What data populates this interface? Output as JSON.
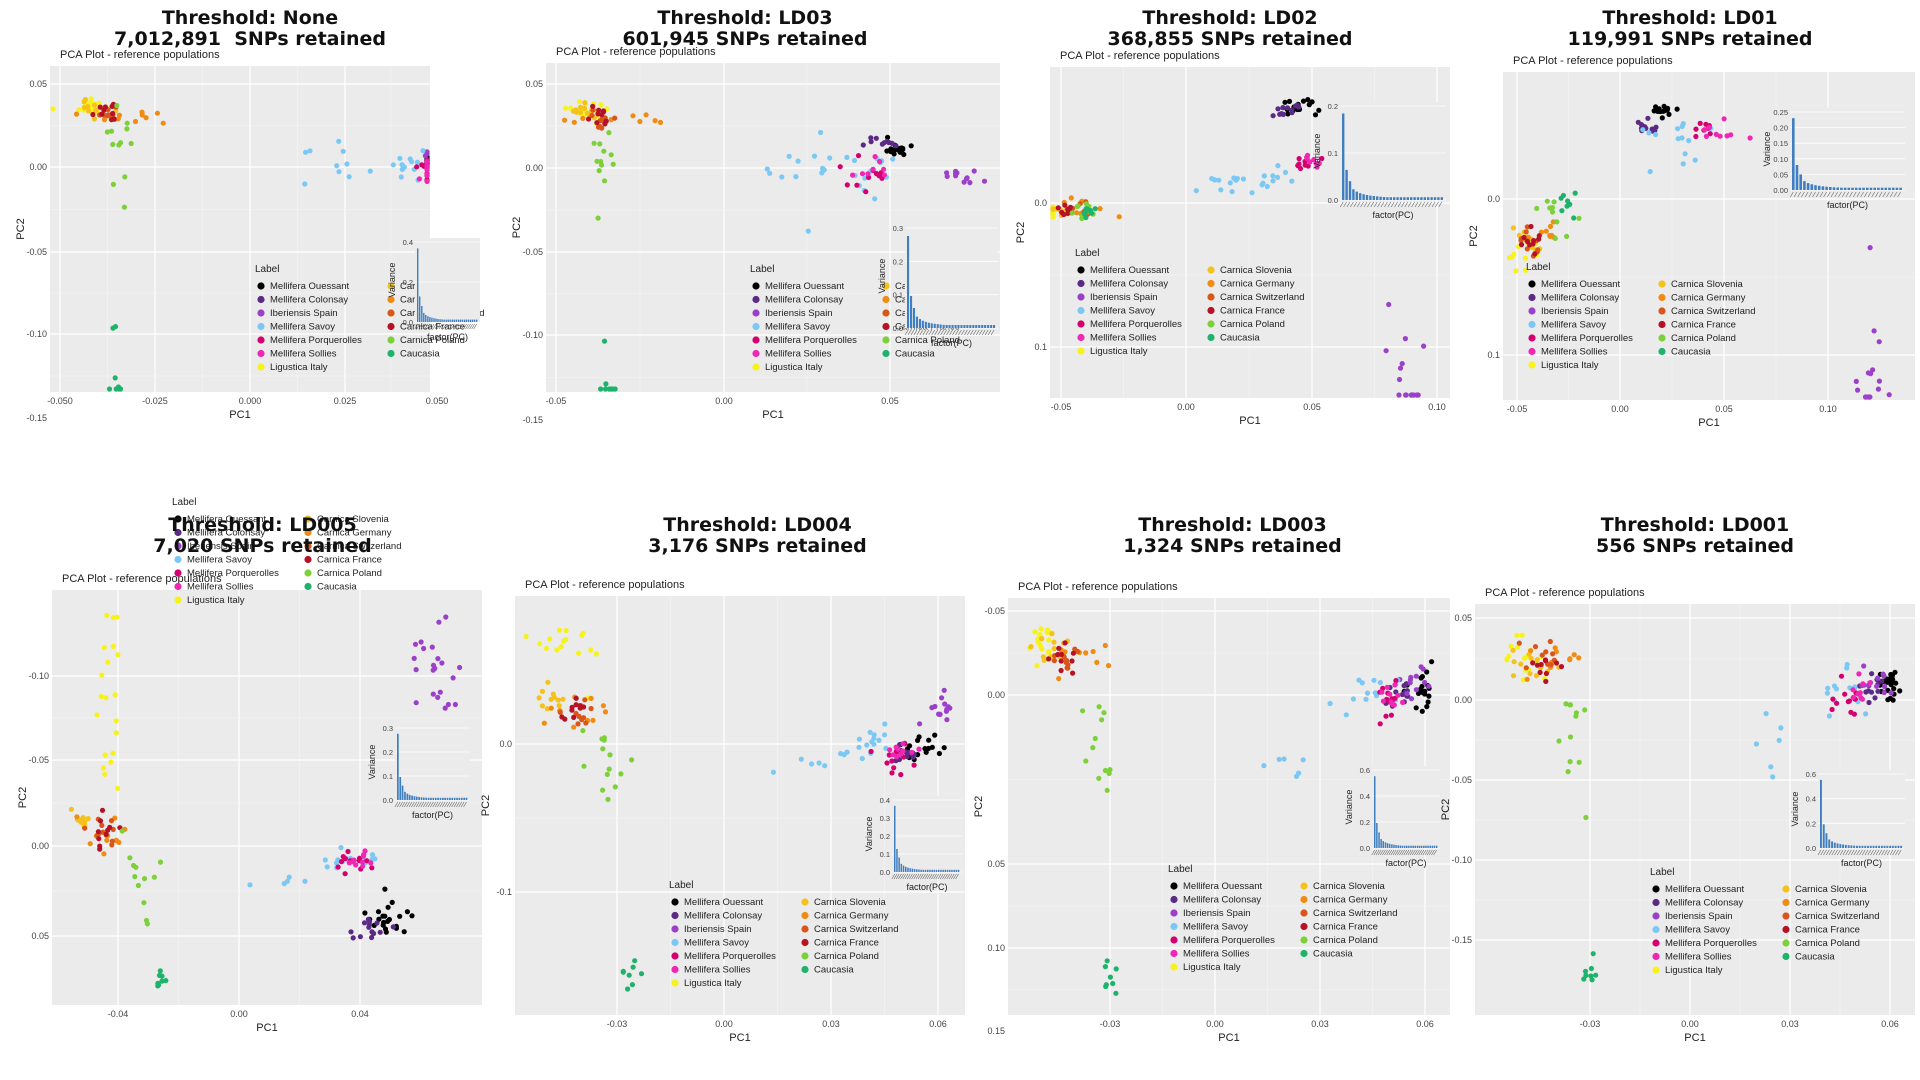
{
  "plot_title": "PCA Plot - reference populations",
  "legend_title": "Label",
  "x_label": "PC1",
  "y_label": "PC2",
  "inset_y_label": "Variance",
  "inset_x_label": "factor(PC)",
  "populations": [
    {
      "name": "Mellifera Ouessant",
      "color": "#000000"
    },
    {
      "name": "Mellifera Colonsay",
      "color": "#5B2A86"
    },
    {
      "name": "Iberiensis Spain",
      "color": "#9B40C9"
    },
    {
      "name": "Mellifera Savoy",
      "color": "#7CC8F5"
    },
    {
      "name": "Mellifera Porquerolles",
      "color": "#D4006F"
    },
    {
      "name": "Mellifera Sollies",
      "color": "#F026B4"
    },
    {
      "name": "Ligustica Italy",
      "color": "#F7F21B"
    },
    {
      "name": "Carnica Slovenia",
      "color": "#F4C21A"
    },
    {
      "name": "Carnica Germany",
      "color": "#F08C12"
    },
    {
      "name": "Carnica Switzerland",
      "color": "#D9561A"
    },
    {
      "name": "Carnica France",
      "color": "#B51226"
    },
    {
      "name": "Carnica Poland",
      "color": "#7ED03B"
    },
    {
      "name": "Caucasia",
      "color": "#1EB36B"
    }
  ],
  "chart_data": [
    {
      "type": "scatter",
      "heading": "Threshold: None",
      "subheading": "7,012,891  SNPs retained",
      "x_ticks": [
        "-0.050",
        "-0.025",
        "0.000",
        "0.025",
        "0.050"
      ],
      "y_ticks": [
        "0.05",
        "0.00",
        "-0.05",
        "-0.10",
        "-0.15"
      ],
      "inset_ticks": [
        "0.4",
        "0.2",
        "0.0"
      ]
    },
    {
      "type": "scatter",
      "heading": "Threshold: LD03",
      "subheading": "601,945 SNPs retained",
      "x_ticks": [
        "-0.05",
        "0.00",
        "0.05"
      ],
      "y_ticks": [
        "0.05",
        "0.00",
        "-0.05",
        "-0.10",
        "-0.15"
      ],
      "inset_ticks": [
        "0.3",
        "0.2",
        "0.1",
        "0.0"
      ]
    },
    {
      "type": "scatter",
      "heading": "Threshold: LD02",
      "subheading": "368,855 SNPs retained",
      "x_ticks": [
        "-0.05",
        "0.00",
        "0.05",
        "0.10"
      ],
      "y_ticks": [
        "0.0",
        "0.1"
      ],
      "inset_ticks": [
        "0.2",
        "0.1",
        "0.0"
      ]
    },
    {
      "type": "scatter",
      "heading": "Threshold: LD01",
      "subheading": "119,991 SNPs retained",
      "x_ticks": [
        "-0.05",
        "0.00",
        "0.05",
        "0.10"
      ],
      "y_ticks": [
        "0.0",
        "0.1"
      ],
      "inset_ticks": [
        "0.25",
        "0.20",
        "0.15",
        "0.10",
        "0.05",
        "0.00"
      ]
    },
    {
      "type": "scatter",
      "heading": "Threshold: LD005",
      "subheading": "7,020 SNPs retained",
      "x_ticks": [
        "-0.04",
        "0.00",
        "0.04"
      ],
      "y_ticks": [
        "-0.10",
        "-0.05",
        "0.00",
        "0.05"
      ],
      "inset_ticks": [
        "0.3",
        "0.2",
        "0.1",
        "0.0"
      ]
    },
    {
      "type": "scatter",
      "heading": "Threshold: LD004",
      "subheading": "3,176 SNPs retained",
      "x_ticks": [
        "-0.03",
        "0.00",
        "0.03",
        "0.06"
      ],
      "y_ticks": [
        "0.0",
        "-0.1"
      ],
      "inset_ticks": [
        "0.4",
        "0.3",
        "0.2",
        "0.1",
        "0.0"
      ]
    },
    {
      "type": "scatter",
      "heading": "Threshold: LD003",
      "subheading": "1,324 SNPs retained",
      "x_ticks": [
        "-0.03",
        "0.00",
        "0.03",
        "0.06"
      ],
      "y_ticks": [
        "-0.05",
        "0.00",
        "0.05",
        "0.10",
        "0.15"
      ],
      "inset_ticks": [
        "0.6",
        "0.4",
        "0.2",
        "0.0"
      ]
    },
    {
      "type": "scatter",
      "heading": "Threshold: LD001",
      "subheading": "556 SNPs retained",
      "x_ticks": [
        "-0.03",
        "0.00",
        "0.03",
        "0.06"
      ],
      "y_ticks": [
        "0.05",
        "0.00",
        "-0.05",
        "-0.10",
        "-0.15"
      ],
      "inset_ticks": [
        "0.6",
        "0.4",
        "0.2",
        "0.0"
      ]
    }
  ]
}
